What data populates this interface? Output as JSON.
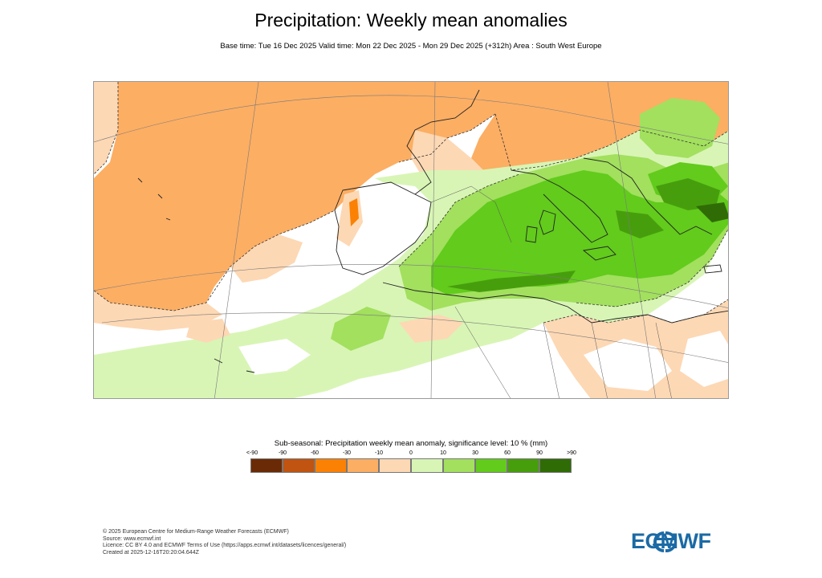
{
  "header": {
    "title": "Precipitation: Weekly mean anomalies",
    "subtitle": "Base time: Tue 16 Dec 2025 Valid time: Mon 22 Dec 2025 - Mon 29 Dec 2025 (+312h) Area : South West Europe"
  },
  "legend": {
    "title": "Sub-seasonal: Precipitation weekly mean anomaly, significance level: 10 % (mm)",
    "ticks": [
      "<-90",
      "-90",
      "-60",
      "-30",
      "-10",
      "0",
      "10",
      "30",
      "60",
      "90",
      ">90"
    ],
    "colors": [
      "#6b2a06",
      "#c05410",
      "#fb8104",
      "#fcae63",
      "#fdd8b4",
      "#d8f5b5",
      "#a2e05e",
      "#62cb1c",
      "#479e0d",
      "#2f6c06"
    ]
  },
  "footer": {
    "line1": "© 2025 European Centre for Medium-Range Weather Forecasts (ECMWF)",
    "line2": "Source: www.ecmwf.int",
    "line3": "Licence: CC BY 4.0 and ECMWF Terms of Use (https://apps.ecmwf.int/datasets/licences/general/)",
    "line4": "Created at 2025-12-16T20:20:04.644Z"
  },
  "logo": {
    "text": "ECMWF",
    "color": "#1b6aa5"
  }
}
